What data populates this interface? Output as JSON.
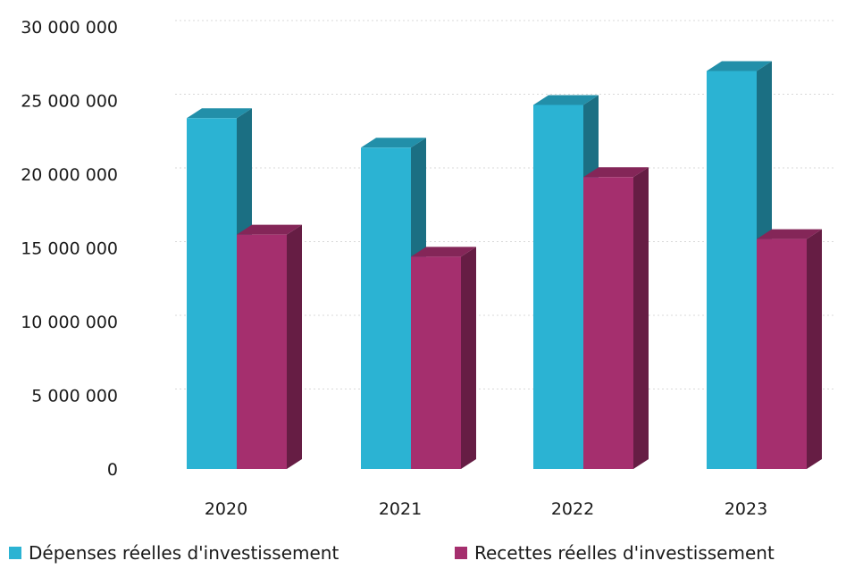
{
  "chart_data": {
    "type": "bar",
    "style": "3d-clustered-column",
    "categories": [
      "2020",
      "2021",
      "2022",
      "2023"
    ],
    "series": [
      {
        "name": "Dépenses réelles d'investissement",
        "color": "#2bb3d3",
        "values": [
          23800000,
          21800000,
          24700000,
          27000000
        ]
      },
      {
        "name": "Recettes réelles d'investissement",
        "color": "#a52f6e",
        "values": [
          15900000,
          14400000,
          19800000,
          15600000
        ]
      }
    ],
    "yticks": [
      "0",
      "5 000 000",
      "10 000 000",
      "15 000 000",
      "20 000 000",
      "25 000 000",
      "30 000 000"
    ],
    "ylim": [
      0,
      30000000
    ],
    "grid": true,
    "legend_position": "bottom",
    "title": "",
    "xlabel": "",
    "ylabel": ""
  }
}
